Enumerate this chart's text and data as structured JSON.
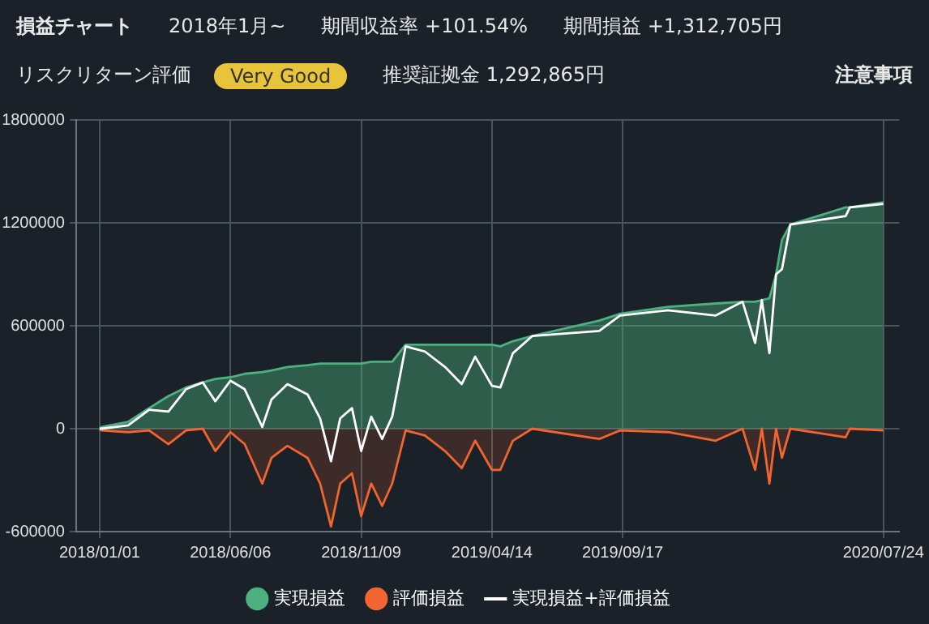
{
  "chart_data": {
    "type": "area",
    "title": "損益チャート",
    "annotations": [
      "2018年1月~",
      "期間収益率 +101.54%",
      "期間損益 +1,312,705円",
      "リスクリターン評価",
      "Very Good",
      "推奨証拠金 1,292,865円",
      "注意事項"
    ],
    "x": [
      "2018-01-01",
      "2018-01-03",
      "2018-02-04",
      "2018-03-01",
      "2018-03-24",
      "2018-04-14",
      "2018-05-04",
      "2018-05-19",
      "2018-06-06",
      "2018-06-23",
      "2018-07-14",
      "2018-07-25",
      "2018-08-13",
      "2018-09-06",
      "2018-09-21",
      "2018-10-04",
      "2018-10-15",
      "2018-10-29",
      "2018-11-09",
      "2018-11-21",
      "2018-12-04",
      "2018-12-16",
      "2019-01-01",
      "2019-01-24",
      "2019-02-17",
      "2019-03-09",
      "2019-03-25",
      "2019-04-14",
      "2019-04-24",
      "2019-05-09",
      "2019-06-01",
      "2019-08-20",
      "2019-09-14",
      "2019-11-10",
      "2020-01-06",
      "2020-02-07",
      "2020-02-22",
      "2020-03-01",
      "2020-03-10",
      "2020-03-18",
      "2020-03-25",
      "2020-04-04",
      "2020-06-09",
      "2020-06-14",
      "2020-07-24"
    ],
    "series": [
      {
        "name": "実現損益",
        "type": "area",
        "color": "#4cb07f",
        "values": [
          0,
          10000,
          40000,
          120000,
          190000,
          240000,
          270000,
          290000,
          300000,
          320000,
          330000,
          340000,
          360000,
          370000,
          380000,
          380000,
          380000,
          380000,
          380000,
          390000,
          390000,
          390000,
          490000,
          490000,
          490000,
          490000,
          490000,
          490000,
          480000,
          510000,
          540000,
          630000,
          670000,
          710000,
          730000,
          740000,
          740000,
          750000,
          760000,
          900000,
          1100000,
          1190000,
          1290000,
          1290000,
          1320000
        ]
      },
      {
        "name": "評価損益",
        "type": "area",
        "color": "#f26430",
        "values": [
          0,
          -10000,
          -20000,
          -10000,
          -90000,
          -10000,
          0,
          -130000,
          -20000,
          -90000,
          -320000,
          -170000,
          -100000,
          -170000,
          -320000,
          -570000,
          -320000,
          -260000,
          -510000,
          -320000,
          -450000,
          -320000,
          -10000,
          -40000,
          -130000,
          -230000,
          -70000,
          -240000,
          -240000,
          -70000,
          0,
          -60000,
          -10000,
          -20000,
          -70000,
          0,
          -240000,
          0,
          -320000,
          0,
          -170000,
          0,
          -50000,
          0,
          -10000
        ]
      },
      {
        "name": "実現損益+評価損益",
        "type": "line",
        "color": "#ffffff",
        "values": [
          0,
          0,
          20000,
          110000,
          100000,
          230000,
          270000,
          160000,
          280000,
          230000,
          10000,
          170000,
          260000,
          200000,
          60000,
          -190000,
          60000,
          120000,
          -130000,
          70000,
          -60000,
          70000,
          480000,
          450000,
          360000,
          260000,
          420000,
          250000,
          240000,
          440000,
          540000,
          570000,
          660000,
          690000,
          660000,
          740000,
          500000,
          750000,
          440000,
          900000,
          930000,
          1190000,
          1240000,
          1290000,
          1310000
        ]
      }
    ],
    "xlim": [
      "2017-12-04",
      "2020-08-12"
    ],
    "xticks": [
      {
        "value": "2018-01-01",
        "label": "2018/01/01"
      },
      {
        "value": "2018-06-06",
        "label": "2018/06/06"
      },
      {
        "value": "2018-11-09",
        "label": "2018/11/09"
      },
      {
        "value": "2019-04-14",
        "label": "2019/04/14"
      },
      {
        "value": "2019-09-17",
        "label": "2019/09/17"
      },
      {
        "value": "2020-07-24",
        "label": "2020/07/24"
      }
    ],
    "ylim": [
      -600000,
      1800000
    ],
    "yticks": [
      -600000,
      0,
      600000,
      1200000,
      1800000
    ],
    "grid": true,
    "legend": "bottom",
    "marker": "none",
    "line_style": "solid"
  }
}
